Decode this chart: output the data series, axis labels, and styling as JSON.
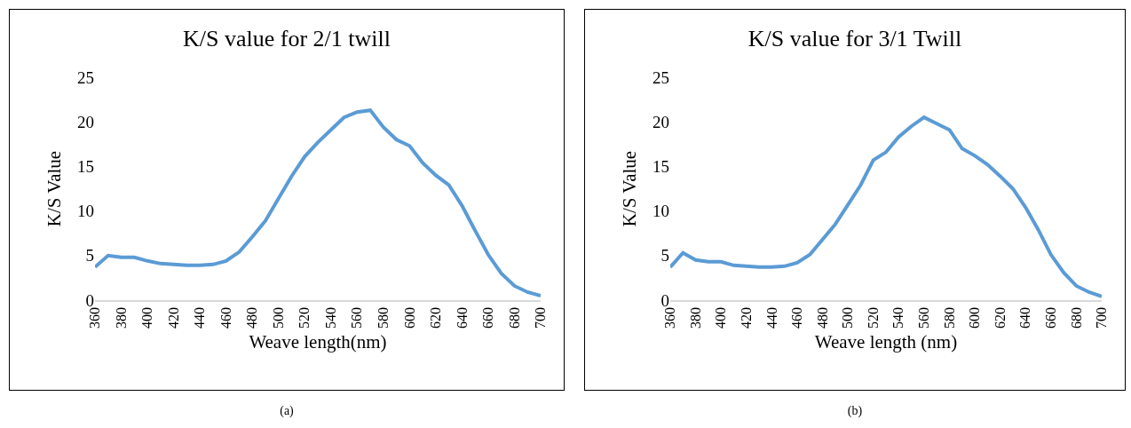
{
  "chart_data": [
    {
      "type": "line",
      "title": "K/S value for 2/1 twill",
      "xlabel": "Weave length(nm)",
      "ylabel": "K/S Value",
      "annotations": [
        "(a)"
      ],
      "x": [
        360,
        370,
        380,
        390,
        400,
        410,
        420,
        430,
        440,
        450,
        460,
        470,
        480,
        490,
        500,
        510,
        520,
        530,
        540,
        550,
        560,
        570,
        580,
        590,
        600,
        610,
        620,
        630,
        640,
        650,
        660,
        670,
        680,
        690,
        700
      ],
      "series": [
        {
          "color": "#5b9bd5",
          "values": [
            3.7,
            5.0,
            4.8,
            4.8,
            4.4,
            4.1,
            4.0,
            3.9,
            3.9,
            4.0,
            4.4,
            5.4,
            7.1,
            8.9,
            11.4,
            13.9,
            16.1,
            17.7,
            19.1,
            20.5,
            21.1,
            21.3,
            19.4,
            18.0,
            17.3,
            15.4,
            14.0,
            12.9,
            10.6,
            7.8,
            5.1,
            3.0,
            1.6,
            0.9,
            0.5
          ]
        }
      ],
      "xlim": [
        360,
        700
      ],
      "xticks": [
        360,
        380,
        400,
        420,
        440,
        460,
        480,
        500,
        520,
        540,
        560,
        580,
        600,
        620,
        640,
        660,
        680,
        700
      ],
      "ylim": [
        0,
        25
      ],
      "yticks": [
        0,
        5,
        10,
        15,
        20,
        25
      ],
      "line_style": "solid"
    },
    {
      "type": "line",
      "title": "K/S value for 3/1 Twill",
      "xlabel": "Weave length (nm)",
      "ylabel": "K/S Value",
      "annotations": [
        "(b)"
      ],
      "x": [
        360,
        370,
        380,
        390,
        400,
        410,
        420,
        430,
        440,
        450,
        460,
        470,
        480,
        490,
        500,
        510,
        520,
        530,
        540,
        550,
        560,
        570,
        580,
        590,
        600,
        610,
        620,
        630,
        640,
        650,
        660,
        670,
        680,
        690,
        700
      ],
      "series": [
        {
          "color": "#5b9bd5",
          "values": [
            3.7,
            5.3,
            4.5,
            4.3,
            4.3,
            3.9,
            3.8,
            3.7,
            3.7,
            3.8,
            4.2,
            5.1,
            6.8,
            8.5,
            10.7,
            12.9,
            15.7,
            16.6,
            18.3,
            19.5,
            20.5,
            19.8,
            19.1,
            17.0,
            16.2,
            15.2,
            13.9,
            12.5,
            10.4,
            7.9,
            5.1,
            3.1,
            1.6,
            0.9,
            0.4
          ]
        }
      ],
      "xlim": [
        360,
        700
      ],
      "xticks": [
        360,
        380,
        400,
        420,
        440,
        460,
        480,
        500,
        520,
        540,
        560,
        580,
        600,
        620,
        640,
        660,
        680,
        700
      ],
      "ylim": [
        0,
        25
      ],
      "yticks": [
        0,
        5,
        10,
        15,
        20,
        25
      ],
      "line_style": "solid"
    }
  ]
}
